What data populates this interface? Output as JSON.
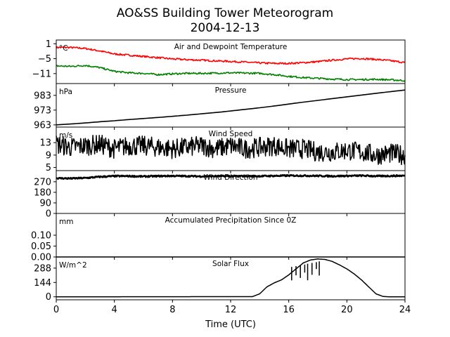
{
  "title_line1": "AO&SS Building Tower Meteorogram",
  "title_line2": "2004-12-13",
  "chart_data": [
    {
      "type": "line",
      "title": "Air and Dewpoint Temperature",
      "unit": "°C",
      "ylim": [
        -15,
        2.5
      ],
      "yticks": [
        1,
        -5,
        -11
      ],
      "ytick_labels": [
        "1",
        "−5",
        "−11"
      ],
      "series": [
        {
          "color": "#ff0000",
          "x": [
            0,
            1,
            2,
            3,
            4,
            5,
            6,
            7,
            8,
            9,
            10,
            11,
            12,
            13,
            14,
            15,
            16,
            17,
            18,
            19,
            20,
            21,
            22,
            23,
            24
          ],
          "values": [
            -0.5,
            -0.5,
            -0.9,
            -1.9,
            -3.1,
            -3.6,
            -4.1,
            -4.6,
            -5.1,
            -5.4,
            -5.6,
            -5.9,
            -6.1,
            -6.4,
            -6.7,
            -6.9,
            -6.9,
            -6.6,
            -6.2,
            -5.6,
            -5.1,
            -4.9,
            -5.3,
            -5.8,
            -6.6
          ]
        },
        {
          "color": "#008000",
          "x": [
            0,
            1,
            2,
            3,
            4,
            5,
            6,
            7,
            8,
            9,
            10,
            11,
            12,
            13,
            14,
            15,
            16,
            17,
            18,
            19,
            20,
            21,
            22,
            23,
            24
          ],
          "values": [
            -7.9,
            -8.1,
            -7.7,
            -8.6,
            -10.1,
            -10.7,
            -10.9,
            -11.4,
            -11.1,
            -10.9,
            -10.9,
            -10.8,
            -10.7,
            -10.8,
            -10.9,
            -11.4,
            -12.1,
            -12.6,
            -12.9,
            -13.2,
            -13.4,
            -13.4,
            -13.3,
            -13.5,
            -13.8
          ]
        }
      ]
    },
    {
      "type": "line",
      "title": "Pressure",
      "unit": "hPa",
      "ylim": [
        961.5,
        991
      ],
      "yticks": [
        983,
        973,
        963
      ],
      "ytick_labels": [
        "983",
        "973",
        "963"
      ],
      "series": [
        {
          "color": "#000000",
          "x": [
            0,
            1,
            2,
            3,
            4,
            5,
            6,
            7,
            8,
            9,
            10,
            11,
            12,
            13,
            14,
            15,
            16,
            17,
            18,
            19,
            20,
            21,
            22,
            23,
            24
          ],
          "values": [
            963.0,
            963.6,
            964.3,
            965.1,
            965.8,
            966.6,
            967.3,
            968.0,
            968.8,
            969.6,
            970.5,
            971.4,
            972.4,
            973.5,
            974.6,
            975.8,
            977.1,
            978.4,
            979.6,
            980.8,
            982.0,
            983.2,
            984.4,
            985.5,
            986.6
          ]
        }
      ]
    },
    {
      "type": "line",
      "title": "Wind Speed",
      "unit": "m/s",
      "ylim": [
        4,
        18
      ],
      "yticks": [
        13,
        9,
        5
      ],
      "ytick_labels": [
        "13",
        "9",
        "5"
      ],
      "series": [
        {
          "color": "#000000",
          "x": [
            0,
            1,
            2,
            3,
            4,
            5,
            6,
            7,
            8,
            9,
            10,
            11,
            12,
            13,
            14,
            15,
            16,
            17,
            18,
            19,
            20,
            21,
            22,
            23,
            24
          ],
          "values": [
            12.5,
            11.5,
            12.0,
            12.5,
            11.0,
            12.0,
            12.0,
            11.5,
            11.0,
            11.5,
            12.0,
            11.0,
            12.0,
            11.0,
            11.5,
            12.0,
            11.0,
            11.0,
            10.0,
            10.0,
            10.5,
            10.0,
            9.0,
            9.5,
            9.0
          ]
        }
      ]
    },
    {
      "type": "line",
      "title": "Wind Direction",
      "unit": "",
      "ylim": [
        0,
        365
      ],
      "yticks": [
        270,
        180,
        90,
        0
      ],
      "ytick_labels": [
        "270",
        "180",
        "90",
        "0"
      ],
      "series": [
        {
          "color": "#000000",
          "x": [
            0,
            1,
            2,
            3,
            4,
            5,
            6,
            7,
            8,
            9,
            10,
            11,
            12,
            13,
            14,
            15,
            16,
            17,
            18,
            19,
            20,
            21,
            22,
            23,
            24
          ],
          "values": [
            300,
            298,
            302,
            312,
            318,
            318,
            315,
            318,
            320,
            318,
            316,
            318,
            318,
            318,
            318,
            320,
            322,
            322,
            320,
            318,
            320,
            322,
            318,
            320,
            322
          ]
        }
      ]
    },
    {
      "type": "line",
      "title": "Accumulated Precipitation Since 0Z",
      "unit": "mm",
      "ylim": [
        0,
        0.2
      ],
      "yticks": [
        0.1,
        0.05,
        0.0
      ],
      "ytick_labels": [
        "0.10",
        "0.05",
        "0.00"
      ],
      "series": [
        {
          "color": "#000000",
          "x": [
            0,
            24
          ],
          "values": [
            0,
            0
          ]
        }
      ]
    },
    {
      "type": "line",
      "title": "Solar Flux",
      "unit": "W/m^2",
      "ylim": [
        -30,
        400
      ],
      "yticks": [
        288,
        144,
        0
      ],
      "ytick_labels": [
        "288",
        "144",
        "0"
      ],
      "xlabel": "Time (UTC)",
      "xlim": [
        0,
        24
      ],
      "xticks": [
        0,
        4,
        8,
        12,
        16,
        20,
        24
      ],
      "series": [
        {
          "color": "#000000",
          "x": [
            0,
            13.5,
            14,
            14.5,
            15,
            15.5,
            16,
            16.5,
            17,
            17.5,
            18,
            18.5,
            19,
            19.5,
            20,
            20.5,
            21,
            21.5,
            22,
            22.5,
            23,
            24
          ],
          "values": [
            0,
            2,
            30,
            100,
            140,
            170,
            220,
            280,
            340,
            370,
            380,
            375,
            355,
            320,
            280,
            230,
            170,
            100,
            30,
            3,
            0,
            0
          ]
        }
      ]
    }
  ]
}
